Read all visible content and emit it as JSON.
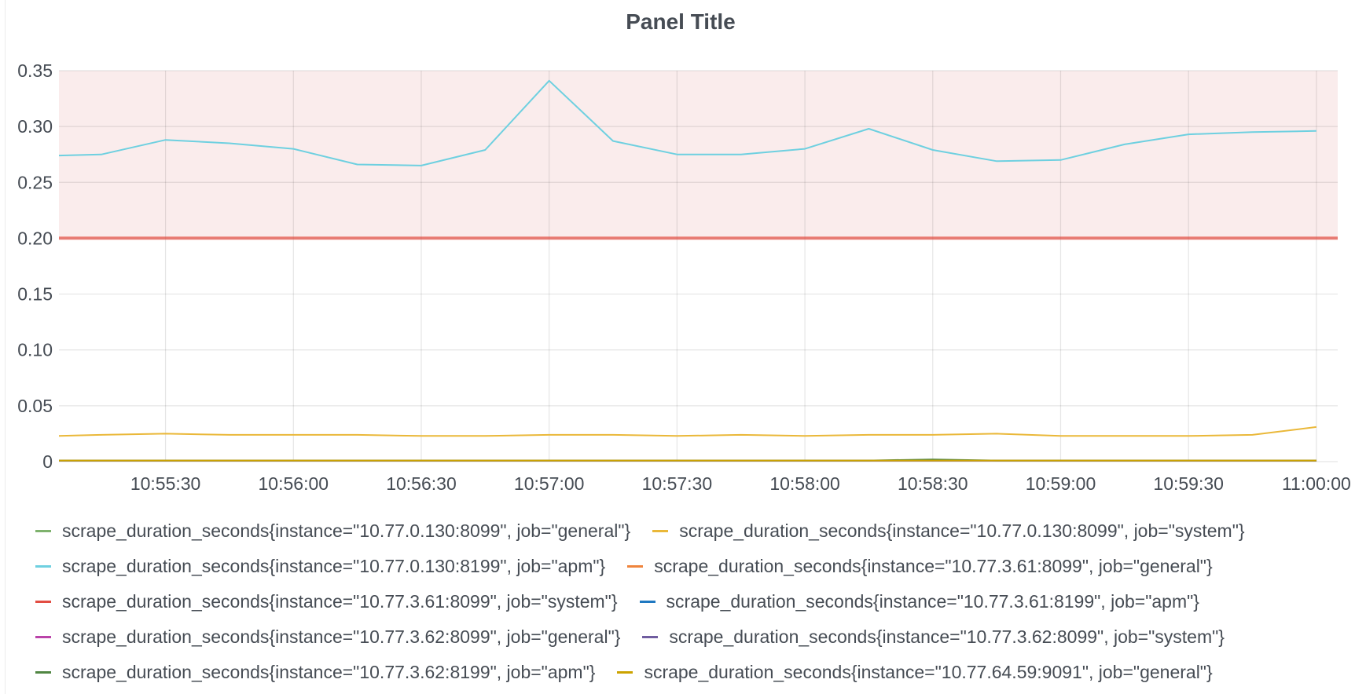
{
  "panel": {
    "title": "Panel Title"
  },
  "chart_data": {
    "type": "line",
    "title": "Panel Title",
    "ylim": [
      0,
      0.35
    ],
    "y_ticks": [
      "0",
      "0.05",
      "0.10",
      "0.15",
      "0.20",
      "0.25",
      "0.30",
      "0.35"
    ],
    "y_tick_values": [
      0,
      0.05,
      0.1,
      0.15,
      0.2,
      0.25,
      0.3,
      0.35
    ],
    "xlim": [
      "10:55:05",
      "11:00:05"
    ],
    "x_ticks": [
      "10:55:30",
      "10:56:00",
      "10:56:30",
      "10:57:00",
      "10:57:30",
      "10:58:00",
      "10:58:30",
      "10:59:00",
      "10:59:30",
      "11:00:00"
    ],
    "x": [
      "10:55:00",
      "10:55:15",
      "10:55:30",
      "10:55:45",
      "10:56:00",
      "10:56:15",
      "10:56:30",
      "10:56:45",
      "10:57:00",
      "10:57:15",
      "10:57:30",
      "10:57:45",
      "10:58:00",
      "10:58:15",
      "10:58:30",
      "10:58:45",
      "10:59:00",
      "10:59:15",
      "10:59:30",
      "10:59:45",
      "11:00:00"
    ],
    "grid": true,
    "threshold": {
      "value": 0.2,
      "op": "gt",
      "line_color": "#e24d42",
      "fill_color": "#f2cccc"
    },
    "legend_position": "bottom",
    "series": [
      {
        "name": "scrape_duration_seconds{instance=\"10.77.0.130:8099\", job=\"general\"}",
        "color": "#7eb26d",
        "values": [
          0.001,
          0.001,
          0.001,
          0.001,
          0.001,
          0.001,
          0.001,
          0.001,
          0.001,
          0.001,
          0.001,
          0.001,
          0.001,
          0.001,
          0.001,
          0.001,
          0.001,
          0.001,
          0.001,
          0.001,
          0.001
        ]
      },
      {
        "name": "scrape_duration_seconds{instance=\"10.77.0.130:8099\", job=\"system\"}",
        "color": "#eab839",
        "values": [
          0.023,
          0.024,
          0.025,
          0.024,
          0.024,
          0.024,
          0.023,
          0.023,
          0.024,
          0.024,
          0.023,
          0.024,
          0.023,
          0.024,
          0.024,
          0.025,
          0.023,
          0.023,
          0.023,
          0.024,
          0.031
        ]
      },
      {
        "name": "scrape_duration_seconds{instance=\"10.77.0.130:8199\", job=\"apm\"}",
        "color": "#6ed0e0",
        "values": [
          0.274,
          0.275,
          0.288,
          0.285,
          0.28,
          0.266,
          0.265,
          0.279,
          0.341,
          0.287,
          0.275,
          0.275,
          0.28,
          0.298,
          0.279,
          0.269,
          0.27,
          0.284,
          0.293,
          0.295,
          0.296
        ]
      },
      {
        "name": "scrape_duration_seconds{instance=\"10.77.3.61:8099\", job=\"general\"}",
        "color": "#ef843c",
        "values": [
          0.001,
          0.001,
          0.001,
          0.001,
          0.001,
          0.001,
          0.001,
          0.001,
          0.001,
          0.001,
          0.001,
          0.001,
          0.001,
          0.001,
          0.001,
          0.001,
          0.001,
          0.001,
          0.001,
          0.001,
          0.001
        ]
      },
      {
        "name": "scrape_duration_seconds{instance=\"10.77.3.61:8099\", job=\"system\"}",
        "color": "#e24d42",
        "values": [
          0.001,
          0.001,
          0.001,
          0.001,
          0.001,
          0.001,
          0.001,
          0.001,
          0.001,
          0.001,
          0.001,
          0.001,
          0.001,
          0.001,
          0.001,
          0.001,
          0.001,
          0.001,
          0.001,
          0.001,
          0.001
        ]
      },
      {
        "name": "scrape_duration_seconds{instance=\"10.77.3.61:8199\", job=\"apm\"}",
        "color": "#1f78c1",
        "values": [
          0.001,
          0.001,
          0.001,
          0.001,
          0.001,
          0.001,
          0.001,
          0.001,
          0.001,
          0.001,
          0.001,
          0.001,
          0.001,
          0.001,
          0.001,
          0.001,
          0.001,
          0.001,
          0.001,
          0.001,
          0.001
        ]
      },
      {
        "name": "scrape_duration_seconds{instance=\"10.77.3.62:8099\", job=\"general\"}",
        "color": "#ba43a9",
        "values": [
          0.001,
          0.001,
          0.001,
          0.001,
          0.001,
          0.001,
          0.001,
          0.001,
          0.001,
          0.001,
          0.001,
          0.001,
          0.001,
          0.001,
          0.001,
          0.001,
          0.001,
          0.001,
          0.001,
          0.001,
          0.001
        ]
      },
      {
        "name": "scrape_duration_seconds{instance=\"10.77.3.62:8099\", job=\"system\"}",
        "color": "#705da0",
        "values": [
          0.001,
          0.001,
          0.001,
          0.001,
          0.001,
          0.001,
          0.001,
          0.001,
          0.001,
          0.001,
          0.001,
          0.001,
          0.001,
          0.001,
          0.001,
          0.001,
          0.001,
          0.001,
          0.001,
          0.001,
          0.001
        ]
      },
      {
        "name": "scrape_duration_seconds{instance=\"10.77.3.62:8199\", job=\"apm\"}",
        "color": "#508642",
        "values": [
          0.001,
          0.001,
          0.001,
          0.001,
          0.001,
          0.001,
          0.001,
          0.001,
          0.001,
          0.001,
          0.001,
          0.001,
          0.001,
          0.001,
          0.002,
          0.001,
          0.001,
          0.001,
          0.001,
          0.001,
          0.001
        ]
      },
      {
        "name": "scrape_duration_seconds{instance=\"10.77.64.59:9091\", job=\"general\"}",
        "color": "#cca300",
        "values": [
          0.001,
          0.001,
          0.001,
          0.001,
          0.001,
          0.001,
          0.001,
          0.001,
          0.001,
          0.001,
          0.001,
          0.001,
          0.001,
          0.001,
          0.001,
          0.001,
          0.001,
          0.001,
          0.001,
          0.001,
          0.001
        ]
      }
    ]
  }
}
